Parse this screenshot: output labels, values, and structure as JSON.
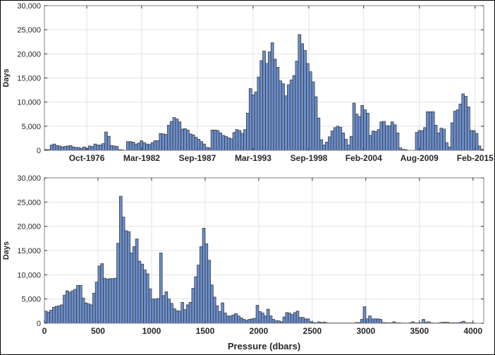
{
  "chart_data": [
    {
      "type": "bar",
      "title": "",
      "xlabel": "",
      "ylabel": "Days",
      "x_is_date": true,
      "xlim": [
        1972.57,
        2015.93
      ],
      "ylim": [
        0,
        30000
      ],
      "grid": true,
      "x_ticks": [
        {
          "value": 1976.75,
          "label": "Oct-1976"
        },
        {
          "value": 1982.17,
          "label": "Mar-1982"
        },
        {
          "value": 1987.67,
          "label": "Sep-1987"
        },
        {
          "value": 1993.17,
          "label": "Mar-1993"
        },
        {
          "value": 1998.67,
          "label": "Sep-1998"
        },
        {
          "value": 2004.08,
          "label": "Feb-2004"
        },
        {
          "value": 2009.58,
          "label": "Aug-2009"
        },
        {
          "value": 2015.08,
          "label": "Feb-2015"
        }
      ],
      "y_ticks": [
        {
          "value": 0,
          "label": "0"
        },
        {
          "value": 5000,
          "label": "5,000"
        },
        {
          "value": 10000,
          "label": "10,000"
        },
        {
          "value": 15000,
          "label": "15,000"
        },
        {
          "value": 20000,
          "label": "20,000"
        },
        {
          "value": 25000,
          "label": "25,000"
        },
        {
          "value": 30000,
          "label": "30,000"
        }
      ],
      "bin_start": 1972.6,
      "bin_width": 0.269,
      "values": [
        150,
        150,
        1100,
        1300,
        1000,
        900,
        700,
        800,
        900,
        1000,
        700,
        600,
        600,
        400,
        700,
        400,
        900,
        800,
        1300,
        1100,
        1100,
        1400,
        3800,
        2900,
        1000,
        900,
        800,
        150,
        100,
        0,
        1800,
        1800,
        1700,
        1300,
        1500,
        2000,
        1600,
        1300,
        1200,
        1600,
        2000,
        2000,
        3500,
        3400,
        3300,
        5200,
        6000,
        6800,
        6500,
        5900,
        4400,
        4500,
        4200,
        3400,
        3200,
        2700,
        2300,
        1800,
        1300,
        600,
        500,
        4200,
        4200,
        4100,
        3600,
        3100,
        2900,
        2600,
        2400,
        3700,
        4300,
        4100,
        3500,
        4300,
        7700,
        12800,
        11500,
        12100,
        15200,
        18600,
        20600,
        18000,
        20400,
        22300,
        18900,
        17200,
        14400,
        13800,
        11300,
        13600,
        14600,
        15500,
        18500,
        24000,
        22100,
        20700,
        18000,
        16300,
        14200,
        11100,
        6700,
        2200,
        1100,
        1700,
        2800,
        4000,
        4700,
        5000,
        4800,
        3600,
        2300,
        1100,
        2900,
        9800,
        7500,
        7000,
        9300,
        8400,
        7700,
        3100,
        4000,
        3900,
        4300,
        5900,
        6000,
        5100,
        5100,
        5900,
        5300,
        3600,
        500,
        200,
        150,
        0,
        0,
        0,
        3700,
        4100,
        4100,
        4700,
        8000,
        8000,
        8000,
        5200,
        3600,
        4600,
        4400,
        1600,
        700,
        5700,
        8100,
        8400,
        9600,
        11700,
        11200,
        9000,
        4100,
        4100,
        3500,
        900,
        200
      ]
    },
    {
      "type": "bar",
      "title": "",
      "xlabel": "Pressure (dbars)",
      "ylabel": "Days",
      "xlim": [
        0,
        4100
      ],
      "ylim": [
        0,
        30000
      ],
      "grid": true,
      "x_ticks": [
        {
          "value": 0,
          "label": "0"
        },
        {
          "value": 500,
          "label": "500"
        },
        {
          "value": 1000,
          "label": "1000"
        },
        {
          "value": 1500,
          "label": "1500"
        },
        {
          "value": 2000,
          "label": "2000"
        },
        {
          "value": 2500,
          "label": "2500"
        },
        {
          "value": 3000,
          "label": "3000"
        },
        {
          "value": 3500,
          "label": "3500"
        },
        {
          "value": 4000,
          "label": "4000"
        }
      ],
      "y_ticks": [
        {
          "value": 0,
          "label": "0"
        },
        {
          "value": 5000,
          "label": "5,000"
        },
        {
          "value": 10000,
          "label": "10,000"
        },
        {
          "value": 15000,
          "label": "15,000"
        },
        {
          "value": 20000,
          "label": "20,000"
        },
        {
          "value": 25000,
          "label": "25,000"
        },
        {
          "value": 30000,
          "label": "30,000"
        }
      ],
      "bin_start": 0,
      "bin_width": 25,
      "values": [
        2500,
        2300,
        2700,
        3300,
        3500,
        3600,
        3800,
        5800,
        6700,
        6400,
        6700,
        7000,
        7800,
        7800,
        5200,
        4200,
        4000,
        3800,
        6200,
        8500,
        11800,
        12300,
        9300,
        9100,
        9200,
        9200,
        9300,
        16500,
        26200,
        21900,
        19100,
        18900,
        14500,
        15800,
        17400,
        12800,
        12200,
        11000,
        10200,
        7100,
        5000,
        5000,
        5100,
        14500,
        5700,
        6500,
        5000,
        4100,
        3000,
        2600,
        2500,
        4300,
        2800,
        3800,
        4300,
        7200,
        9600,
        12000,
        15800,
        19600,
        16400,
        13000,
        7900,
        5400,
        3600,
        2400,
        4200,
        2100,
        1500,
        1500,
        1700,
        2000,
        1500,
        1100,
        800,
        600,
        800,
        900,
        1000,
        3700,
        2400,
        2100,
        1500,
        2900,
        1500,
        800,
        500,
        500,
        300,
        1300,
        2200,
        2100,
        1800,
        2200,
        2500,
        1200,
        1200,
        900,
        900,
        300,
        150,
        100,
        300,
        150,
        250,
        100,
        50,
        50,
        50,
        50,
        50,
        50,
        50,
        50,
        50,
        50,
        150,
        150,
        800,
        3400,
        900,
        1500,
        900,
        900,
        900,
        800,
        150,
        100,
        100,
        100,
        300,
        100,
        100,
        50,
        50,
        50,
        100,
        300,
        100,
        100,
        100,
        800,
        200,
        300,
        100,
        50,
        50,
        100,
        200,
        200,
        200,
        100,
        100,
        100,
        100,
        200,
        400,
        100,
        100,
        100,
        50
      ],
      "bar_color": "#6b8fcf",
      "edge_color": "#3a3a3a"
    }
  ],
  "colors": {
    "bar": "#6b8fcf",
    "edge": "#3a3a3a",
    "grid": "#e3e3e3",
    "axis": "#808080"
  }
}
